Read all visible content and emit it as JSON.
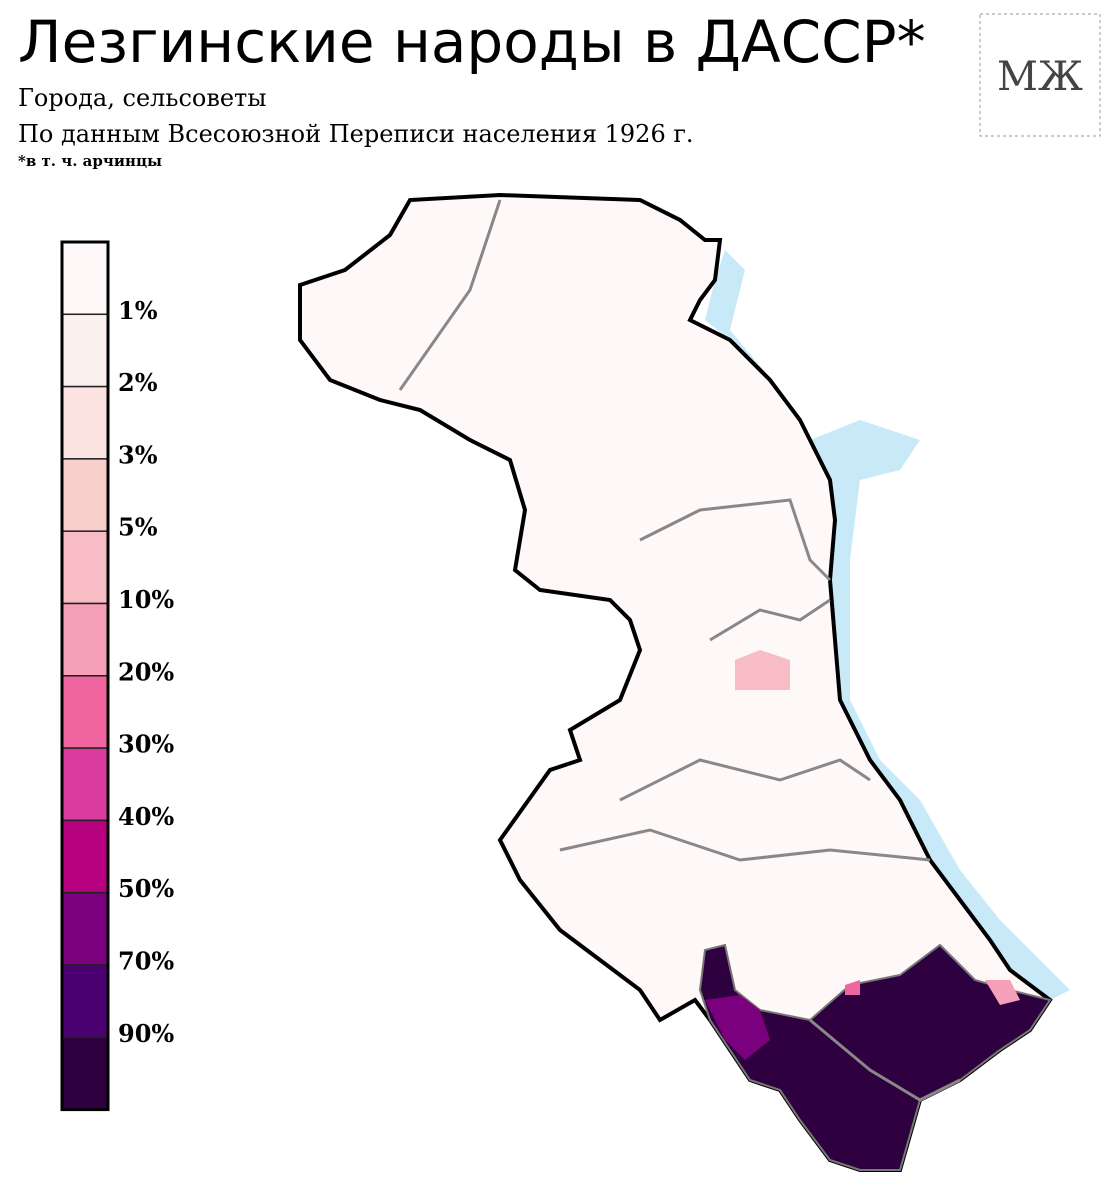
{
  "header": {
    "title": "Лезгинские народы в ДАССР*",
    "subtitle": "Города, сельсоветы",
    "source": "По данным Всесоюзной Переписи населения 1926 г.",
    "footnote": "*в т. ч. арчинцы",
    "logo": "МЖ"
  },
  "legend": {
    "colors": [
      "#fef8f8",
      "#fcf0ef",
      "#fbe3e1",
      "#f9cfcc",
      "#f8bcc4",
      "#f59fb8",
      "#f0659f",
      "#d93c9e",
      "#b7007e",
      "#7a007e",
      "#4a0070",
      "#2e003f"
    ],
    "labels": [
      "1%",
      "2%",
      "3%",
      "5%",
      "10%",
      "20%",
      "30%",
      "40%",
      "50%",
      "70%",
      "90%"
    ]
  }
}
